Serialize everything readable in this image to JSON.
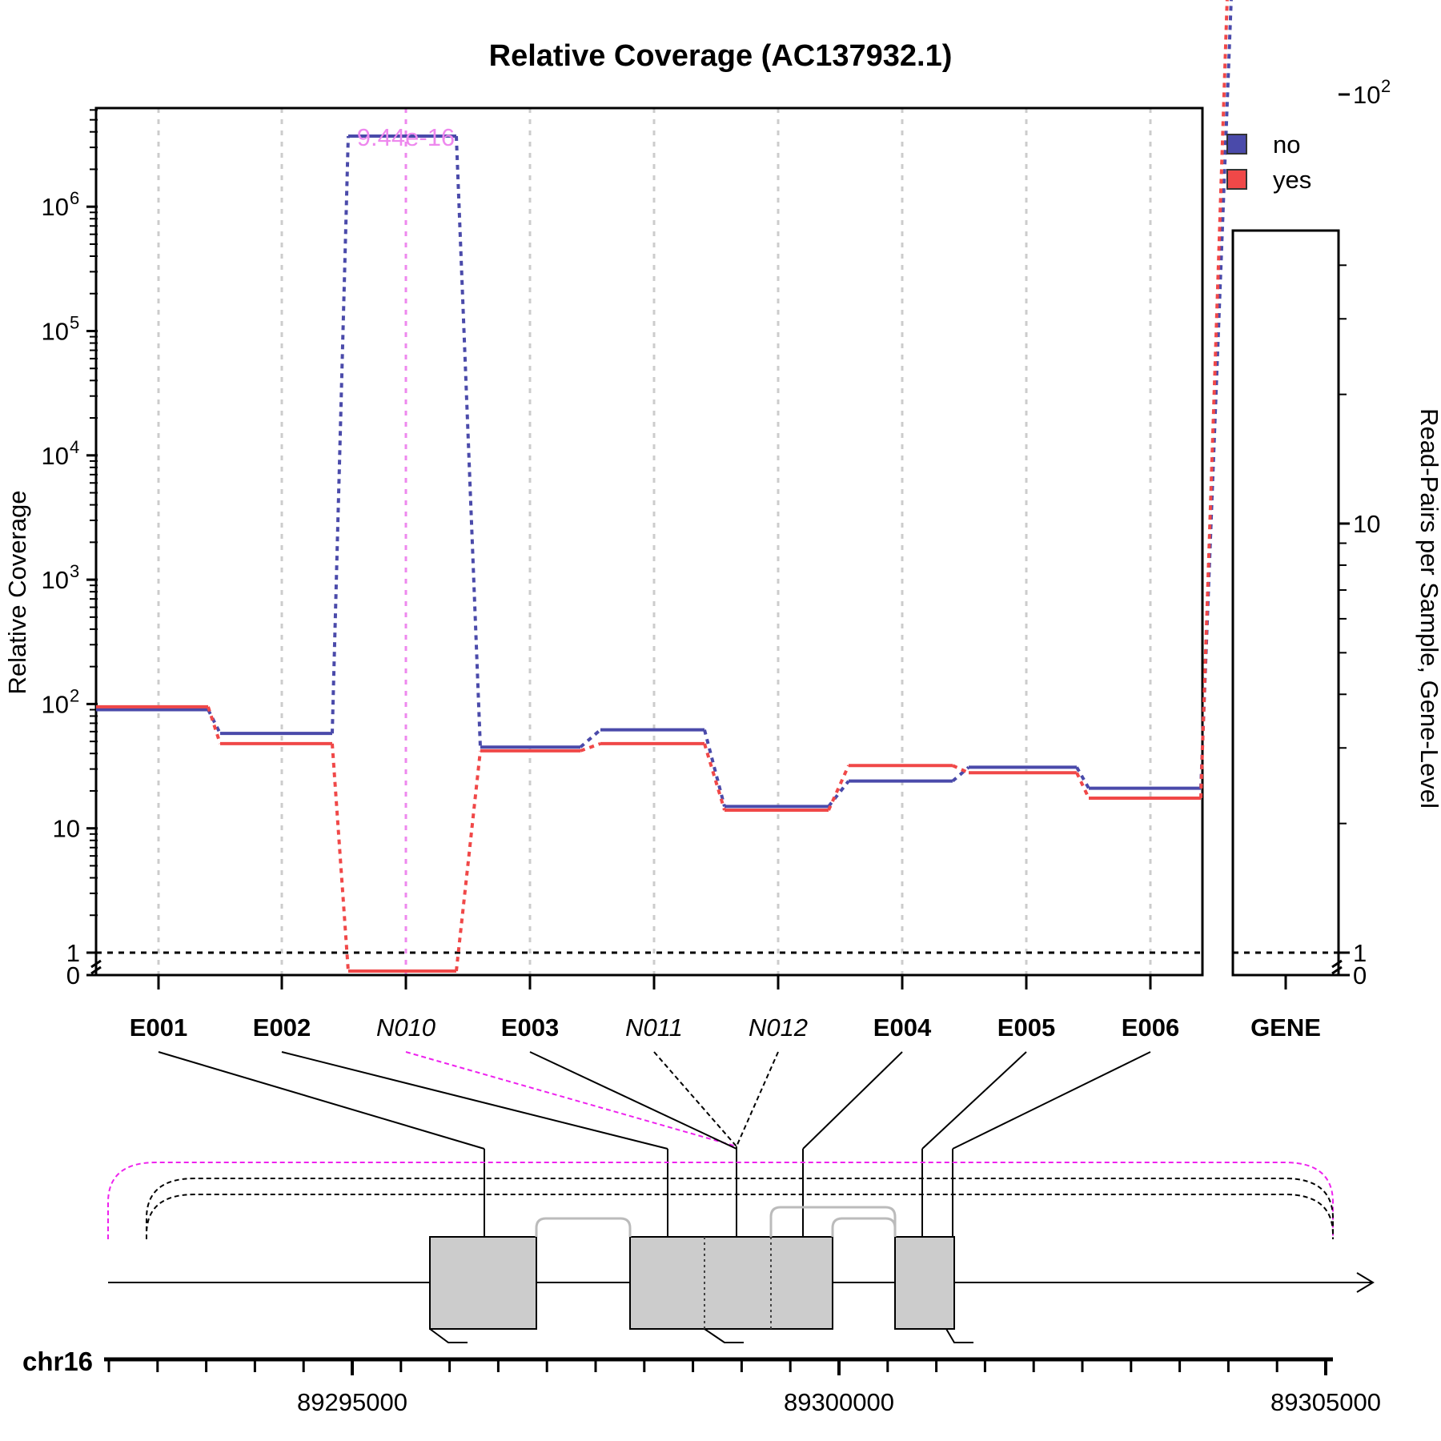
{
  "chart_data": {
    "type": "line",
    "title": "Relative Coverage (AC137932.1)",
    "ylabel": "Relative Coverage",
    "ylabel_right": "Read-Pairs per Sample, Gene-Level",
    "y_scale": "log",
    "y_ticks": [
      {
        "value": 0,
        "label": "0"
      },
      {
        "value": 1,
        "label": "1"
      },
      {
        "value": 10,
        "label": "10"
      },
      {
        "value": 100,
        "label": "10",
        "sup": "2"
      },
      {
        "value": 1000,
        "label": "10",
        "sup": "3"
      },
      {
        "value": 10000,
        "label": "10",
        "sup": "4"
      },
      {
        "value": 100000,
        "label": "10",
        "sup": "5"
      },
      {
        "value": 1000000,
        "label": "10",
        "sup": "6"
      }
    ],
    "y_ticks_right": [
      {
        "value": 0,
        "label": "0"
      },
      {
        "value": 1,
        "label": "1"
      },
      {
        "value": 10,
        "label": "10"
      },
      {
        "value": 100,
        "label": "10",
        "sup": "2"
      }
    ],
    "reference_line": 1,
    "features": [
      {
        "label": "E001",
        "kind": "exon",
        "start": 89295510,
        "end": 89296100
      },
      {
        "label": "E002",
        "kind": "exon",
        "start": 89296300,
        "end": 89297620
      },
      {
        "label": "N010",
        "kind": "novel",
        "start": 89297470,
        "end": 89297480
      },
      {
        "label": "E003",
        "kind": "exon",
        "start": 89297470,
        "end": 89298000
      },
      {
        "label": "N011",
        "kind": "novel",
        "start": 89297950,
        "end": 89297960
      },
      {
        "label": "N012",
        "kind": "novel",
        "start": 89297940,
        "end": 89297950
      },
      {
        "label": "E004",
        "kind": "exon",
        "start": 89298000,
        "end": 89298400
      },
      {
        "label": "E005",
        "kind": "exon",
        "start": 89298400,
        "end": 89299200
      },
      {
        "label": "E006",
        "kind": "exon",
        "start": 89299000,
        "end": 89299400
      }
    ],
    "gene_label": "GENE",
    "series": [
      {
        "name": "no",
        "color": "#4A4AAA",
        "values": [
          90,
          58,
          3700000,
          45,
          62,
          15,
          24,
          31,
          21
        ],
        "gene_value": 210
      },
      {
        "name": "yes",
        "color": "#F04848",
        "values": [
          95,
          48,
          0,
          42,
          48,
          14,
          32,
          28,
          17.5
        ],
        "gene_value": 420
      }
    ],
    "highlight": {
      "feature": "N010",
      "color": "#EE88EE",
      "pvalue_label": "9.44e-16"
    },
    "legend_placement": "top-right",
    "grid": "vertical dashed at feature positions",
    "genome_axis": {
      "chrom": "chr16",
      "range": [
        89290000,
        89305250
      ],
      "ticks": [
        {
          "value": 89295000,
          "label": "89295000"
        },
        {
          "value": 89300000,
          "label": "89300000"
        },
        {
          "value": 89305000,
          "label": "89305000"
        }
      ]
    }
  }
}
